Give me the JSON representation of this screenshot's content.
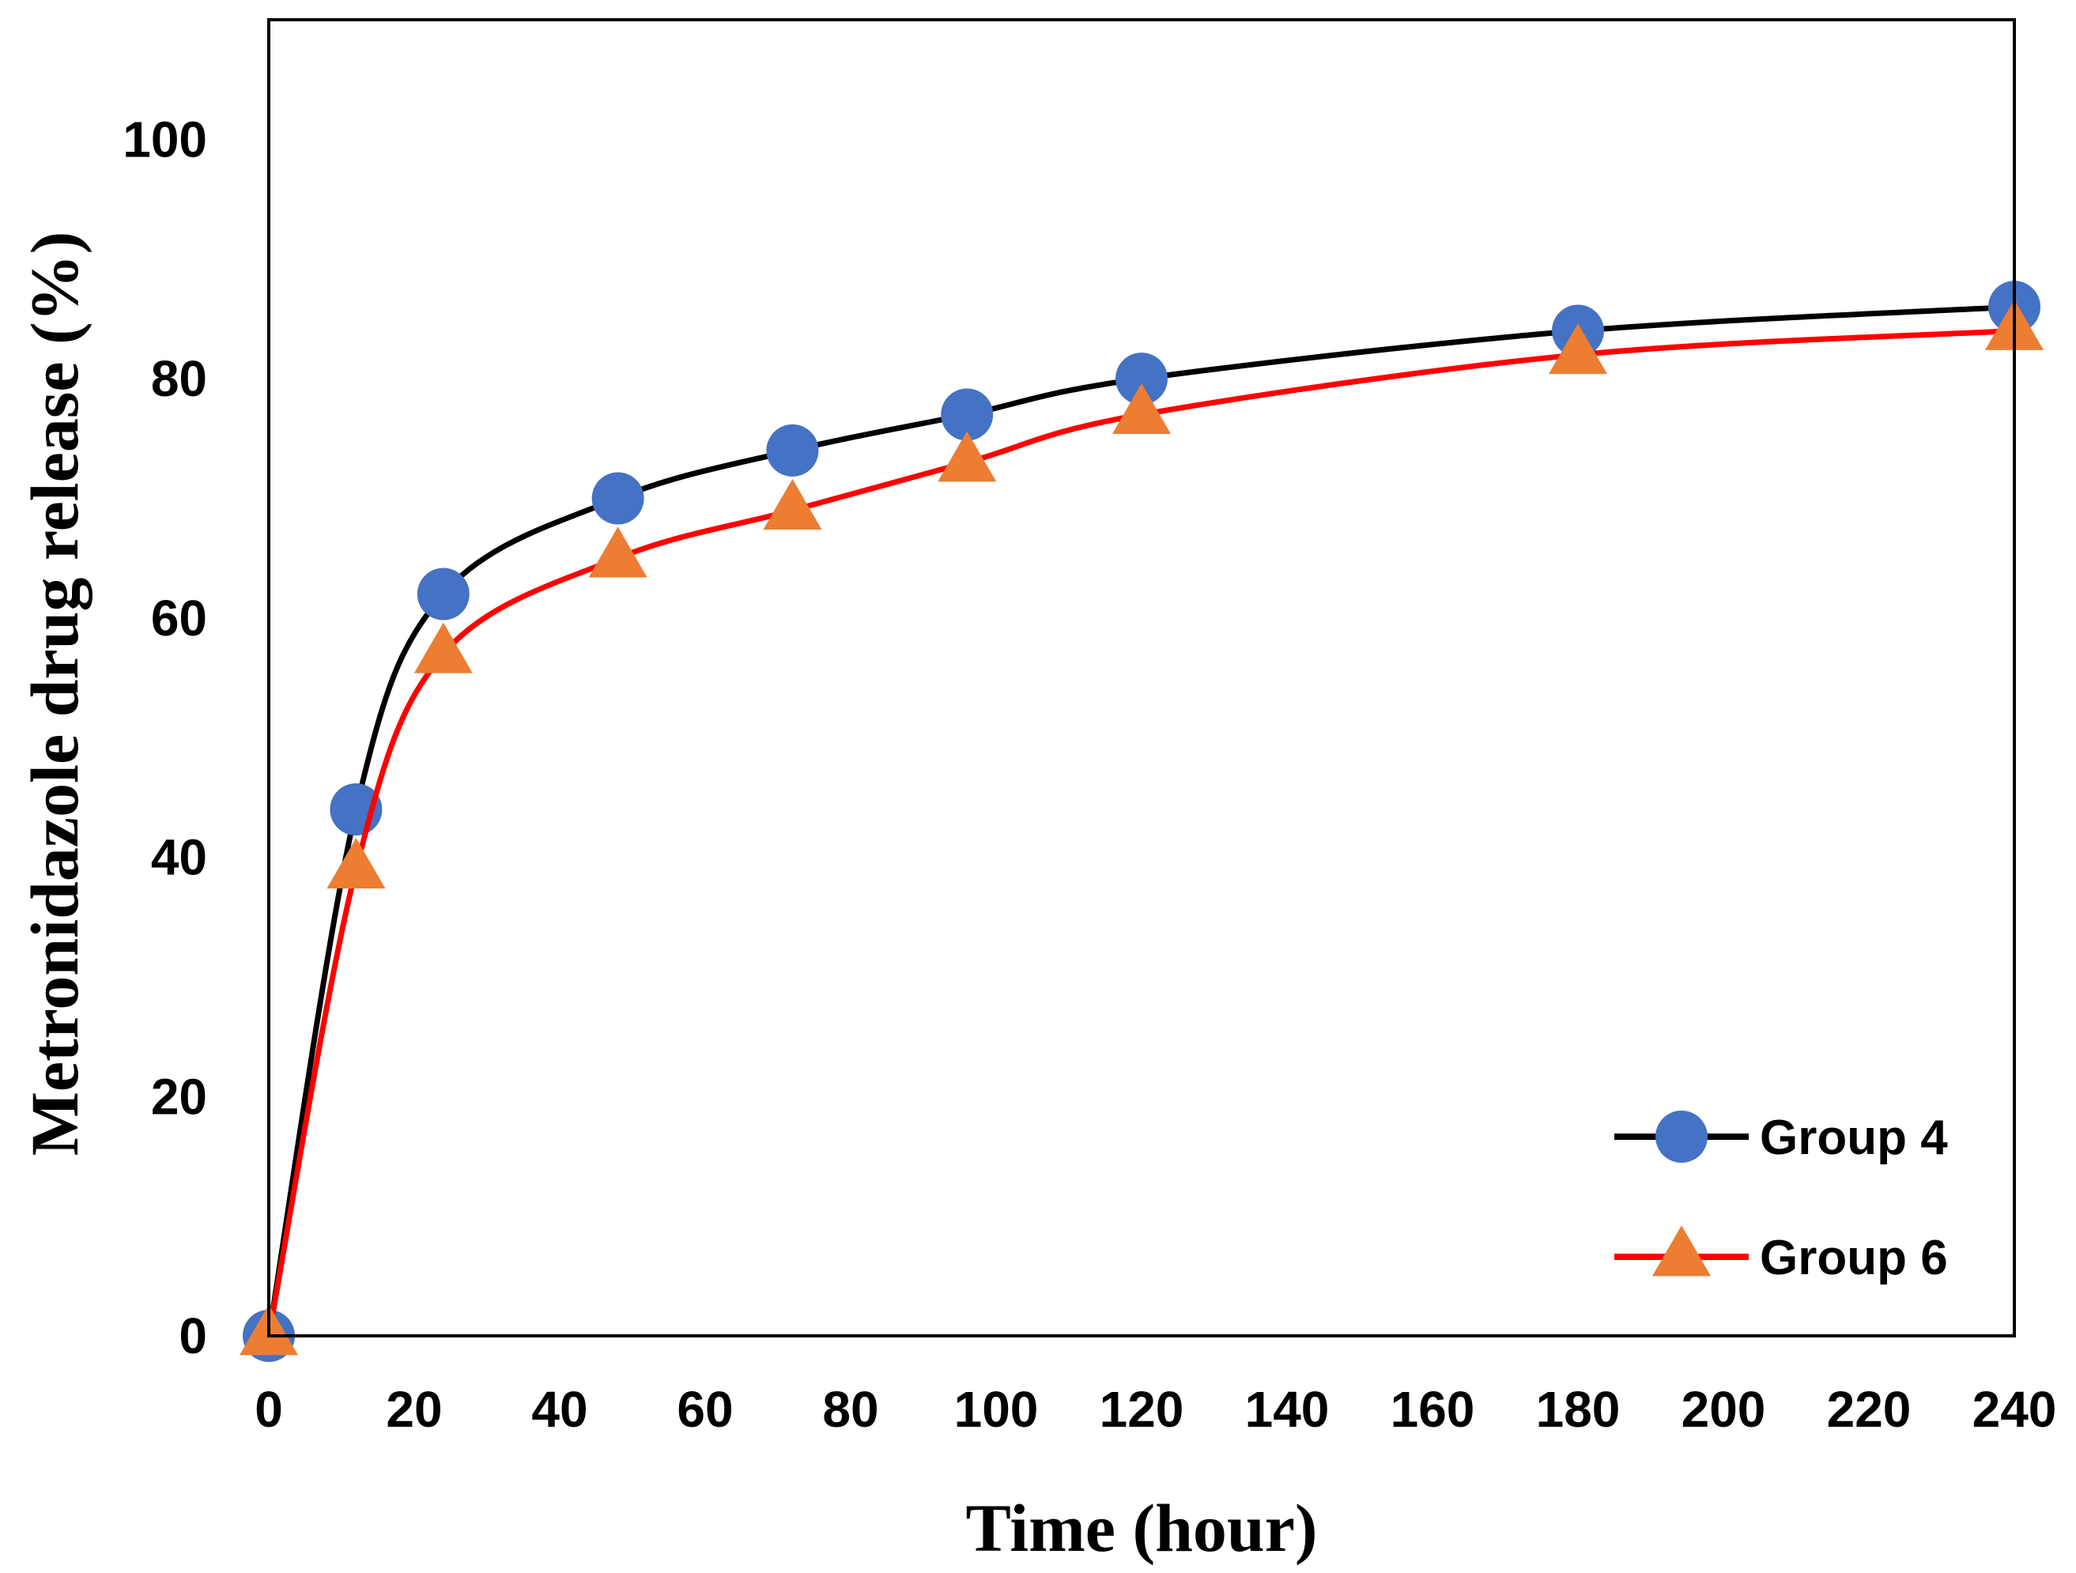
{
  "chart_data": {
    "type": "line",
    "title": "",
    "xlabel": "Time (hour)",
    "ylabel": "Metronidazole drug release (%)",
    "xlim": [
      0,
      240
    ],
    "ylim": [
      0,
      110
    ],
    "xticks": [
      0,
      20,
      40,
      60,
      80,
      100,
      120,
      140,
      160,
      180,
      200,
      220,
      240
    ],
    "yticks": [
      0,
      20,
      40,
      60,
      80,
      100
    ],
    "grid": false,
    "legend_position": "bottom-right",
    "series": [
      {
        "name": "Group 4",
        "marker": "circle",
        "line_color": "#000000",
        "marker_color": "#4472C4",
        "x": [
          0,
          12,
          24,
          48,
          72,
          96,
          120,
          180,
          240
        ],
        "values": [
          0,
          44,
          62,
          70,
          74,
          77,
          80,
          84,
          86
        ]
      },
      {
        "name": "Group 6",
        "marker": "triangle",
        "line_color": "#FF0000",
        "marker_color": "#ED7D31",
        "x": [
          0,
          12,
          24,
          48,
          72,
          96,
          120,
          180,
          240
        ],
        "values": [
          0,
          39,
          57,
          65,
          69,
          73,
          77,
          82,
          84
        ]
      }
    ]
  }
}
